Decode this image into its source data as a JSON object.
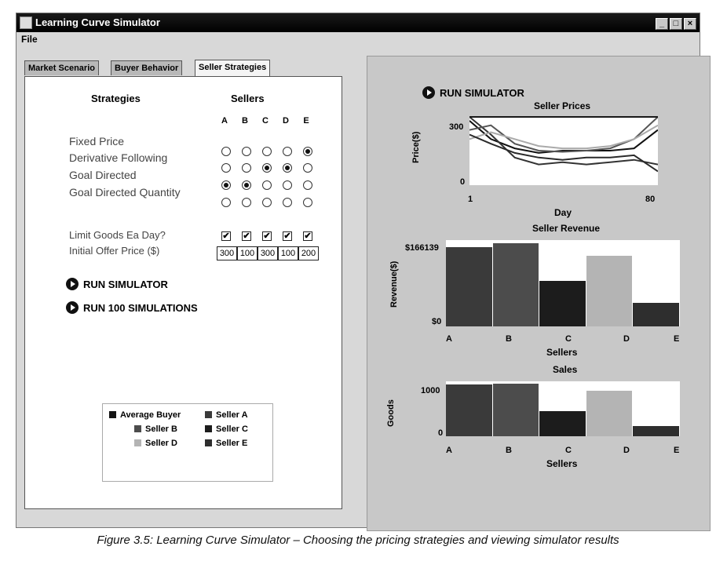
{
  "window": {
    "title": "Learning Curve Simulator"
  },
  "menu": {
    "file": "File"
  },
  "tabs": [
    {
      "label": "Market Scenario",
      "active": false
    },
    {
      "label": "Buyer Behavior",
      "active": false
    },
    {
      "label": "Seller Strategies",
      "active": true
    }
  ],
  "strategies": {
    "header_left": "Strategies",
    "header_right": "Sellers",
    "columns": [
      "A",
      "B",
      "C",
      "D",
      "E"
    ],
    "rows": [
      {
        "label": "Fixed Price",
        "selected": [
          false,
          false,
          false,
          false,
          true
        ]
      },
      {
        "label": "Derivative Following",
        "selected": [
          false,
          false,
          true,
          true,
          false
        ]
      },
      {
        "label": "Goal Directed",
        "selected": [
          true,
          true,
          false,
          false,
          false
        ]
      },
      {
        "label": "Goal Directed Quantity",
        "selected": [
          false,
          false,
          false,
          false,
          false
        ]
      }
    ],
    "limit_label": "Limit Goods Ea Day?",
    "limit_checked": [
      true,
      true,
      true,
      true,
      true
    ],
    "offer_label": "Initial Offer Price ($)",
    "offer_values": [
      "300",
      "100",
      "300",
      "100",
      "200"
    ]
  },
  "buttons": {
    "run": "RUN SIMULATOR",
    "run100": "RUN 100 SIMULATIONS",
    "run_right": "RUN SIMULATOR"
  },
  "legend": [
    {
      "label": "Average Buyer",
      "color": "#141414"
    },
    {
      "label": "Seller A",
      "color": "#3a3a3a"
    },
    {
      "label": "Seller B",
      "color": "#4c4c4c"
    },
    {
      "label": "Seller C",
      "color": "#1c1c1c"
    },
    {
      "label": "Seller D",
      "color": "#b4b4b4"
    },
    {
      "label": "Seller E",
      "color": "#2e2e2e"
    }
  ],
  "chart_data": [
    {
      "type": "line",
      "title": "Seller Prices",
      "xlabel": "Day",
      "ylabel": "Price($)",
      "x_ticks": [
        "1",
        "80"
      ],
      "y_ticks": [
        "300",
        "0"
      ],
      "xlim": [
        1,
        80
      ],
      "ylim": [
        0,
        300
      ],
      "series": [
        {
          "name": "Average Buyer",
          "color": "#111111",
          "x": [
            1,
            10,
            20,
            30,
            40,
            50,
            60,
            70,
            80
          ],
          "y": [
            280,
            200,
            160,
            140,
            150,
            150,
            150,
            160,
            240
          ]
        },
        {
          "name": "Seller A",
          "color": "#333333",
          "x": [
            1,
            10,
            20,
            30,
            40,
            50,
            60,
            70,
            80
          ],
          "y": [
            300,
            220,
            120,
            90,
            100,
            90,
            100,
            110,
            90
          ]
        },
        {
          "name": "Seller B",
          "color": "#555555",
          "x": [
            1,
            10,
            20,
            30,
            40,
            50,
            60,
            70,
            80
          ],
          "y": [
            240,
            260,
            180,
            150,
            145,
            150,
            160,
            200,
            320
          ]
        },
        {
          "name": "Seller C",
          "color": "#1a1a1a",
          "x": [
            1,
            10,
            20,
            30,
            40,
            50,
            60,
            70,
            80
          ],
          "y": [
            300,
            300,
            300,
            300,
            300,
            300,
            300,
            300,
            300
          ]
        },
        {
          "name": "Seller D",
          "color": "#aaaaaa",
          "x": [
            1,
            10,
            20,
            30,
            40,
            50,
            60,
            70,
            80
          ],
          "y": [
            200,
            230,
            200,
            170,
            160,
            160,
            170,
            200,
            260
          ]
        },
        {
          "name": "Seller E",
          "color": "#2a2a2a",
          "x": [
            1,
            10,
            20,
            30,
            40,
            50,
            60,
            70,
            80
          ],
          "y": [
            220,
            180,
            140,
            120,
            110,
            120,
            120,
            130,
            60
          ]
        }
      ]
    },
    {
      "type": "bar",
      "title": "Seller Revenue",
      "xlabel": "Sellers",
      "ylabel": "Revenue($)",
      "categories": [
        "A",
        "B",
        "C",
        "D",
        "E"
      ],
      "y_ticks": [
        "$166139",
        "$0"
      ],
      "ylim": [
        0,
        166139
      ],
      "values": [
        152000,
        160000,
        87000,
        136000,
        45000
      ],
      "colors": [
        "#3a3a3a",
        "#4c4c4c",
        "#1c1c1c",
        "#b4b4b4",
        "#2e2e2e"
      ]
    },
    {
      "type": "bar",
      "title": "Sales",
      "xlabel": "Sellers",
      "ylabel": "Goods",
      "categories": [
        "A",
        "B",
        "C",
        "D",
        "E"
      ],
      "y_ticks": [
        "1000",
        "0"
      ],
      "ylim": [
        0,
        1250
      ],
      "values": [
        1180,
        1190,
        580,
        1040,
        230
      ],
      "colors": [
        "#3a3a3a",
        "#4c4c4c",
        "#1c1c1c",
        "#b4b4b4",
        "#2e2e2e"
      ]
    }
  ],
  "caption": "Figure 3.5: Learning Curve Simulator – Choosing the pricing strategies and viewing simulator results"
}
